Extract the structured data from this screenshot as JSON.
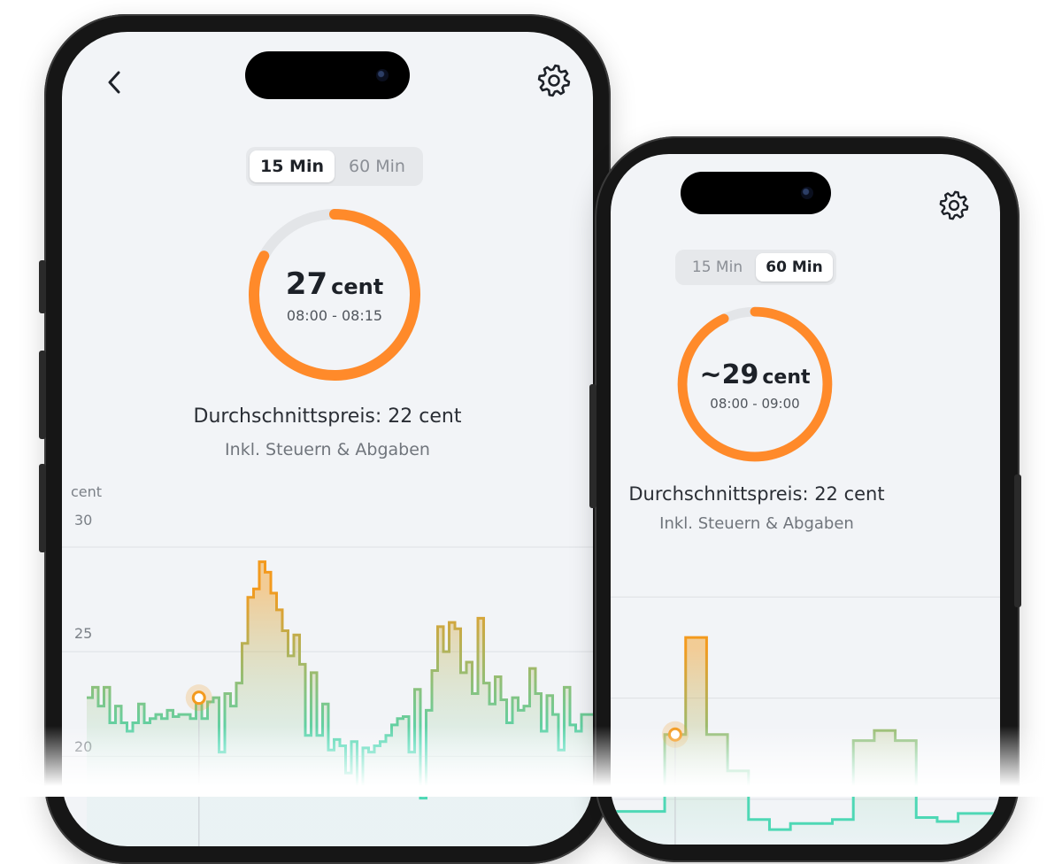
{
  "colors": {
    "accent": "#FF8A2A",
    "ring_track": "#E3E5E8",
    "chart_high": "#F39A1E",
    "chart_low": "#4ED8B5",
    "background": "#F2F4F7"
  },
  "icons": {
    "back": "chevron-left-icon",
    "settings": "gear-icon"
  },
  "phone_left": {
    "segmented": {
      "options": [
        "15 Min",
        "60 Min"
      ],
      "selected": "15 Min"
    },
    "ring": {
      "value": "27",
      "unit": "cent",
      "range": "08:00 - 08:15",
      "progress": 0.83
    },
    "average": "Durchschnittspreis: 22 cent",
    "tax_note": "Inkl. Steuern & Abgaben",
    "chart": {
      "y_unit": "cent",
      "ticks": [
        "30",
        "25",
        "20"
      ]
    }
  },
  "phone_right": {
    "segmented": {
      "options": [
        "15 Min",
        "60 Min"
      ],
      "selected": "60 Min"
    },
    "ring": {
      "value": "~29",
      "unit": "cent",
      "range": "08:00 - 09:00",
      "progress": 0.93
    },
    "average": "Durchschnittspreis: 22 cent",
    "tax_note": "Inkl. Steuern & Abgaben"
  },
  "chart_data": [
    {
      "type": "line",
      "step": true,
      "ylabel": "cent",
      "ylim": [
        18,
        31
      ],
      "yticks": [
        30,
        25,
        20
      ],
      "grid": true,
      "interval": "15 Min",
      "highlight_index": 19,
      "values": [
        22.8,
        23.3,
        22.4,
        23.3,
        21.6,
        22.4,
        21.6,
        21.2,
        21.6,
        22.5,
        21.6,
        21.8,
        22.0,
        21.8,
        22.2,
        21.9,
        22.0,
        22.0,
        21.8,
        22.8,
        21.8,
        22.6,
        22.8,
        20.2,
        23.0,
        22.4,
        23.5,
        25.4,
        27.6,
        28.0,
        29.3,
        28.8,
        27.8,
        27.0,
        26.0,
        24.8,
        25.8,
        24.4,
        21.0,
        24.0,
        21.0,
        22.5,
        20.3,
        20.8,
        20.5,
        19.2,
        20.7,
        18.3,
        20.4,
        20.2,
        20.5,
        20.7,
        21.0,
        21.5,
        21.8,
        21.9,
        20.2,
        23.2,
        18.0,
        22.2,
        24.1,
        26.2,
        25.0,
        26.4,
        26.1,
        24.0,
        24.5,
        23.0,
        26.6,
        23.5,
        22.5,
        23.8,
        22.7,
        21.6,
        22.8,
        22.2,
        22.4,
        24.2,
        23.0,
        21.2,
        22.9,
        22.0,
        20.3,
        23.3,
        21.5,
        21.2,
        22.0,
        22.0
      ]
    },
    {
      "type": "line",
      "step": true,
      "ylim": [
        18,
        31
      ],
      "grid": true,
      "interval": "60 Min",
      "highlight_index": 3,
      "values": [
        19.9,
        19.9,
        19.9,
        23.7,
        28.5,
        23.7,
        21.9,
        19.5,
        19.0,
        19.3,
        19.3,
        19.5,
        23.4,
        23.9,
        23.4,
        19.6,
        19.4,
        19.8,
        19.8
      ]
    }
  ]
}
